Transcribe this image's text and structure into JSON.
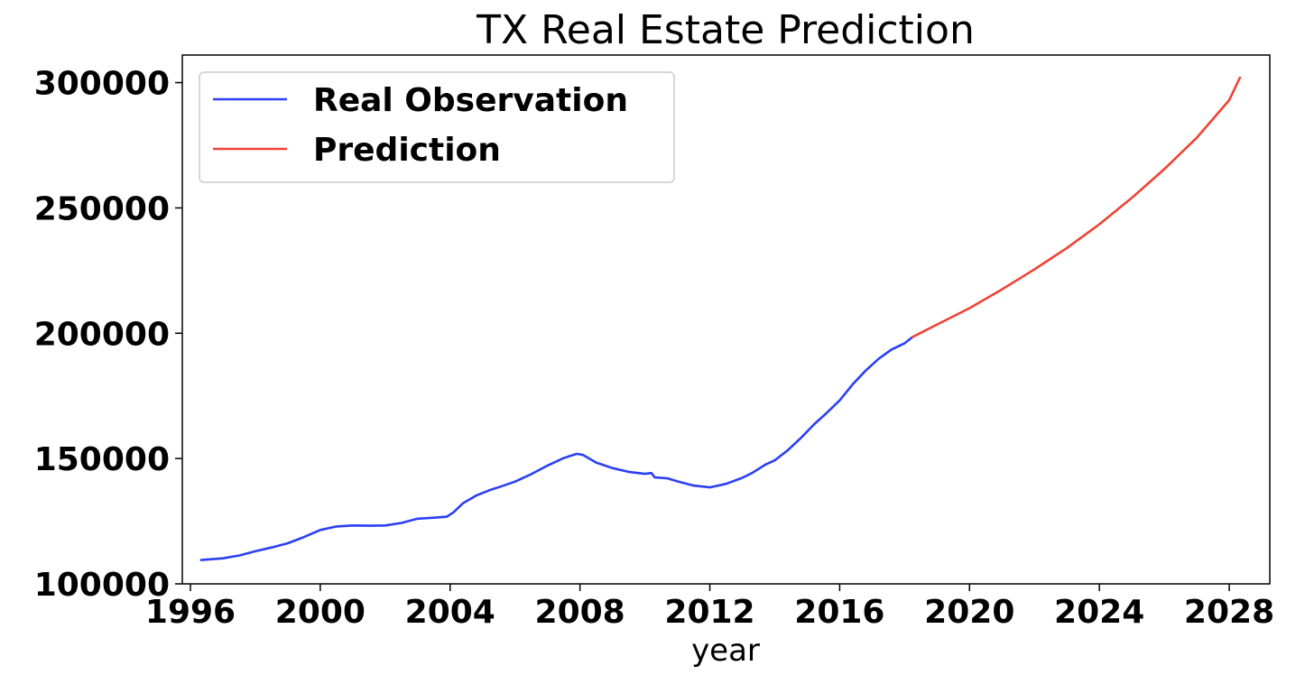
{
  "chart_data": {
    "type": "line",
    "title": "TX Real Estate Prediction",
    "xlabel": "year",
    "ylabel": "",
    "xlim": [
      1995.75,
      2029.25
    ],
    "ylim": [
      100000,
      311000
    ],
    "x_ticks": [
      1996,
      2000,
      2004,
      2008,
      2012,
      2016,
      2020,
      2024,
      2028
    ],
    "y_ticks": [
      100000,
      150000,
      200000,
      250000,
      300000
    ],
    "grid": false,
    "legend_position": "top-left",
    "series": [
      {
        "name": "Real Observation",
        "color": "#2b3ff5",
        "x": [
          1996.33,
          1997.0,
          1997.5,
          1998.0,
          1998.5,
          1999.0,
          1999.5,
          2000.0,
          2000.5,
          2001.0,
          2001.5,
          2002.0,
          2002.5,
          2003.0,
          2003.5,
          2003.9,
          2004.1,
          2004.4,
          2004.8,
          2005.2,
          2005.6,
          2006.0,
          2006.5,
          2007.0,
          2007.5,
          2007.9,
          2008.1,
          2008.5,
          2009.0,
          2009.5,
          2010.0,
          2010.2,
          2010.3,
          2010.7,
          2011.0,
          2011.5,
          2012.0,
          2012.5,
          2013.0,
          2013.3,
          2013.7,
          2014.0,
          2014.4,
          2014.8,
          2015.2,
          2015.6,
          2016.0,
          2016.4,
          2016.8,
          2017.2,
          2017.6,
          2018.0,
          2018.25
        ],
        "y": [
          109500,
          110200,
          111300,
          113000,
          114500,
          116200,
          118700,
          121500,
          122900,
          123300,
          123200,
          123300,
          124300,
          126000,
          126400,
          126800,
          128500,
          132200,
          135200,
          137300,
          139000,
          140800,
          143800,
          147200,
          150200,
          151900,
          151400,
          148400,
          146200,
          144700,
          143900,
          144200,
          142500,
          142100,
          140900,
          139200,
          138500,
          139900,
          142300,
          144200,
          147500,
          149300,
          153300,
          158100,
          163500,
          168200,
          173200,
          179600,
          185100,
          189800,
          193500,
          196000,
          198500
        ]
      },
      {
        "name": "Prediction",
        "color": "#ef4234",
        "x": [
          2018.25,
          2019.0,
          2020.0,
          2021.0,
          2022.0,
          2023.0,
          2024.0,
          2025.0,
          2026.0,
          2027.0,
          2028.0,
          2028.33
        ],
        "y": [
          198500,
          203500,
          210000,
          217500,
          225500,
          234000,
          243500,
          254000,
          265500,
          278000,
          293000,
          302000
        ]
      }
    ]
  }
}
